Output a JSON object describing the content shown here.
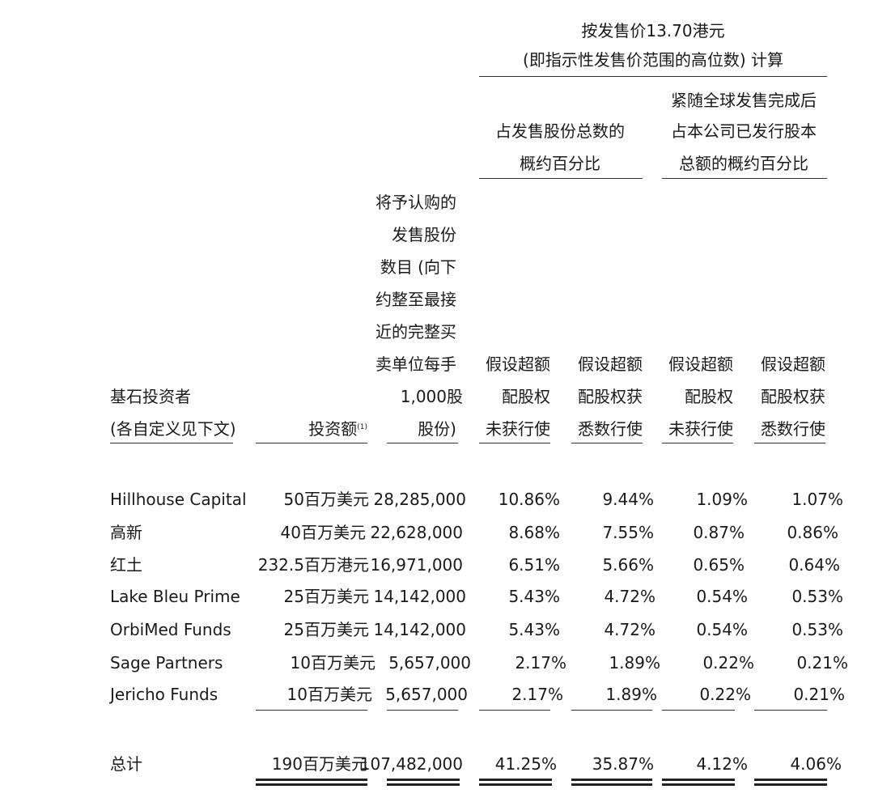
{
  "header": {
    "price_line1": "按发售价13.70港元",
    "price_line2": "(即指示性发售价范围的高位数) 计算",
    "group1": [
      "占发售股份总数的",
      "概约百分比"
    ],
    "group2": [
      "紧随全球发售完成后",
      "占本公司已发行股本",
      "总额的概约百分比"
    ],
    "shares_col": [
      "将予认购的",
      "发售股份",
      "数目 (向下",
      "约整至最接",
      "近的完整买",
      "卖单位每手",
      "1,000股",
      "股份)"
    ],
    "investor_col": [
      "基石投资者",
      "(各自定义见下文)"
    ],
    "amount_col": "投资额",
    "amount_note": "(1)",
    "col_a": [
      "假设超额",
      "配股权",
      "未获行使"
    ],
    "col_b": [
      "假设超额",
      "配股权获",
      "悉数行使"
    ],
    "col_c": [
      "假设超额",
      "配股权",
      "未获行使"
    ],
    "col_d": [
      "假设超额",
      "配股权获",
      "悉数行使"
    ]
  },
  "rows": [
    {
      "name": "Hillhouse Capital",
      "amount": "50百万美元",
      "shares": "28,285,000",
      "a": "10.86%",
      "b": "9.44%",
      "c": "1.09%",
      "d": "1.07%"
    },
    {
      "name": "高新",
      "amount": "40百万美元",
      "shares": "22,628,000",
      "a": "8.68%",
      "b": "7.55%",
      "c": "0.87%",
      "d": "0.86%"
    },
    {
      "name": "红土",
      "amount": "232.5百万港元",
      "shares": "16,971,000",
      "a": "6.51%",
      "b": "5.66%",
      "c": "0.65%",
      "d": "0.64%"
    },
    {
      "name": "Lake Bleu Prime",
      "amount": "25百万美元",
      "shares": "14,142,000",
      "a": "5.43%",
      "b": "4.72%",
      "c": "0.54%",
      "d": "0.53%"
    },
    {
      "name": "OrbiMed Funds",
      "amount": "25百万美元",
      "shares": "14,142,000",
      "a": "5.43%",
      "b": "4.72%",
      "c": "0.54%",
      "d": "0.53%"
    },
    {
      "name": "Sage Partners",
      "amount": "10百万美元",
      "shares": "5,657,000",
      "a": "2.17%",
      "b": "1.89%",
      "c": "0.22%",
      "d": "0.21%"
    },
    {
      "name": "Jericho Funds",
      "amount": "10百万美元",
      "shares": "5,657,000",
      "a": "2.17%",
      "b": "1.89%",
      "c": "0.22%",
      "d": "0.21%"
    }
  ],
  "total": {
    "name": "总计",
    "amount": "190百万美元",
    "shares": "107,482,000",
    "a": "41.25%",
    "b": "35.87%",
    "c": "4.12%",
    "d": "4.06%"
  }
}
